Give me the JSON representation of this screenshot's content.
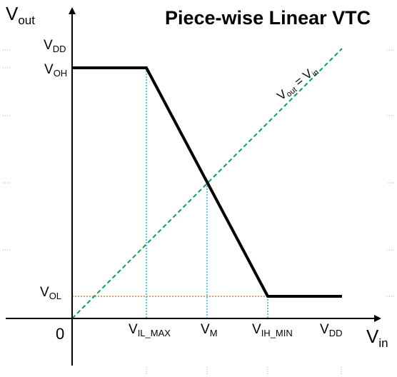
{
  "title": "Piece-wise Linear VTC",
  "axes": {
    "y_label": {
      "main": "V",
      "sub": "out"
    },
    "x_label": {
      "main": "V",
      "sub": "in"
    },
    "origin": "0"
  },
  "y_ticks": {
    "vdd": {
      "main": "V",
      "sub": "DD"
    },
    "voh": {
      "main": "V",
      "sub": "OH"
    },
    "vol": {
      "main": "V",
      "sub": "OL"
    }
  },
  "x_ticks": {
    "vil": {
      "main": "V",
      "sub": "IL_MAX"
    },
    "vm": {
      "main": "V",
      "sub": "M"
    },
    "vih": {
      "main": "V",
      "sub": "IH_MIN"
    },
    "vdd": {
      "main": "V",
      "sub": "DD"
    }
  },
  "identity_line": {
    "v1": "V",
    "s1": "out",
    "eq": " = ",
    "v2": "V",
    "s2": "in"
  },
  "colors": {
    "vtc": "#000000",
    "identity": "#00a651",
    "guides": "#29b6d9",
    "vol_guide": "#ee7733",
    "ticks": "#999999"
  },
  "curve_points": [
    {
      "vin": 0,
      "vout": "VOH"
    },
    {
      "vin": "VIL_MAX",
      "vout": "VOH"
    },
    {
      "vin": "VM",
      "vout": "VM"
    },
    {
      "vin": "VIH_MIN",
      "vout": "VOL"
    },
    {
      "vin": "VDD",
      "vout": "VOL"
    }
  ]
}
